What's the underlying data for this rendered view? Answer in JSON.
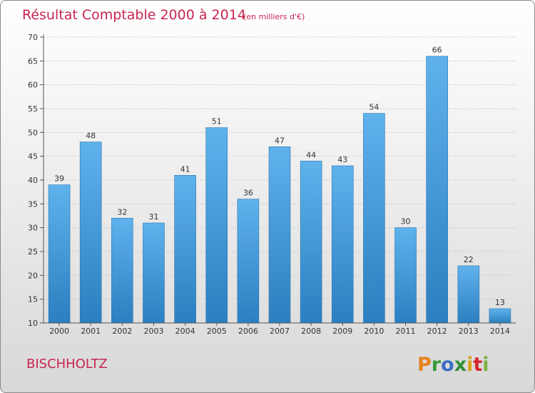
{
  "chart_data": {
    "type": "bar",
    "title": "Résultat Comptable 2000 à 2014",
    "unit_note": "(en milliers d'€)",
    "categories": [
      "2000",
      "2001",
      "2002",
      "2003",
      "2004",
      "2005",
      "2006",
      "2007",
      "2008",
      "2009",
      "2010",
      "2011",
      "2012",
      "2013",
      "2014"
    ],
    "values": [
      39,
      48,
      32,
      31,
      41,
      51,
      36,
      47,
      44,
      43,
      54,
      30,
      66,
      22,
      13
    ],
    "xlabel": "",
    "ylabel": "",
    "ylim": [
      10,
      70
    ],
    "yticks": [
      10,
      15,
      20,
      25,
      30,
      35,
      40,
      45,
      50,
      55,
      60,
      65,
      70
    ],
    "grid": true,
    "bar_color_top": "#5fb2ec",
    "bar_color_bottom": "#2c7fc0"
  },
  "commune": "BISCHHOLTZ",
  "brand": {
    "letters": [
      "P",
      "r",
      "o",
      "x",
      "i",
      "t",
      "i"
    ],
    "colors": [
      "#e8821e",
      "#3a9a3a",
      "#3b6fc4",
      "#2f8f3a",
      "#d8a51a",
      "#d4282e",
      "#7cb342"
    ]
  }
}
